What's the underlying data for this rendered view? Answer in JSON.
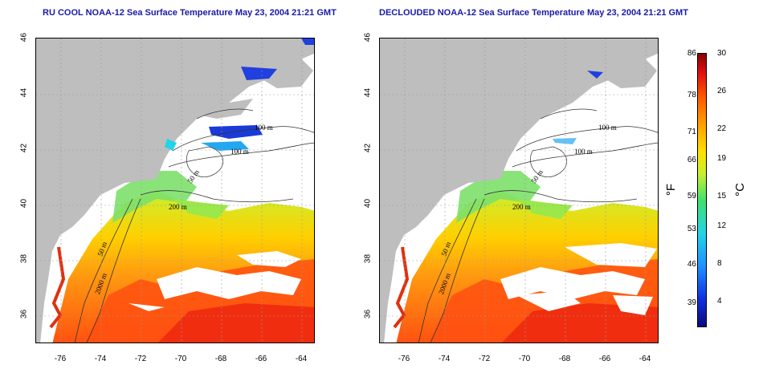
{
  "left_panel": {
    "title": "RU COOL NOAA-12 Sea Surface Temperature May 23, 2004 21:21 GMT"
  },
  "right_panel": {
    "title": "DECLOUDED NOAA-12 Sea Surface Temperature May 23, 2004 21:21 GMT"
  },
  "axes": {
    "y_ticks": [
      "46",
      "44",
      "42",
      "40",
      "38",
      "36"
    ],
    "x_ticks": [
      "-76",
      "-74",
      "-72",
      "-70",
      "-68",
      "-66",
      "-64"
    ]
  },
  "contours": {
    "c100": "100 m",
    "c100b": "100 m",
    "c50": "50 m",
    "c200": "200 m",
    "c50b": "50 m",
    "c2000": "2000 m"
  },
  "colorbar": {
    "f_labels": [
      "86",
      "78",
      "71",
      "66",
      "59",
      "53",
      "46",
      "39"
    ],
    "c_labels": [
      "30",
      "26",
      "22",
      "19",
      "15",
      "12",
      "8",
      "4"
    ],
    "f_unit": "°F",
    "c_unit": "°C",
    "colors": [
      "#0a0a7a",
      "#1030e0",
      "#1e90ff",
      "#22d4e8",
      "#40e070",
      "#c8f030",
      "#ffe000",
      "#ffa000",
      "#ff5a00",
      "#e01010",
      "#8a0000"
    ]
  },
  "palette": {
    "land": "#bebebe",
    "cloud": "#ffffff",
    "title_color": "#1a1aa8"
  }
}
